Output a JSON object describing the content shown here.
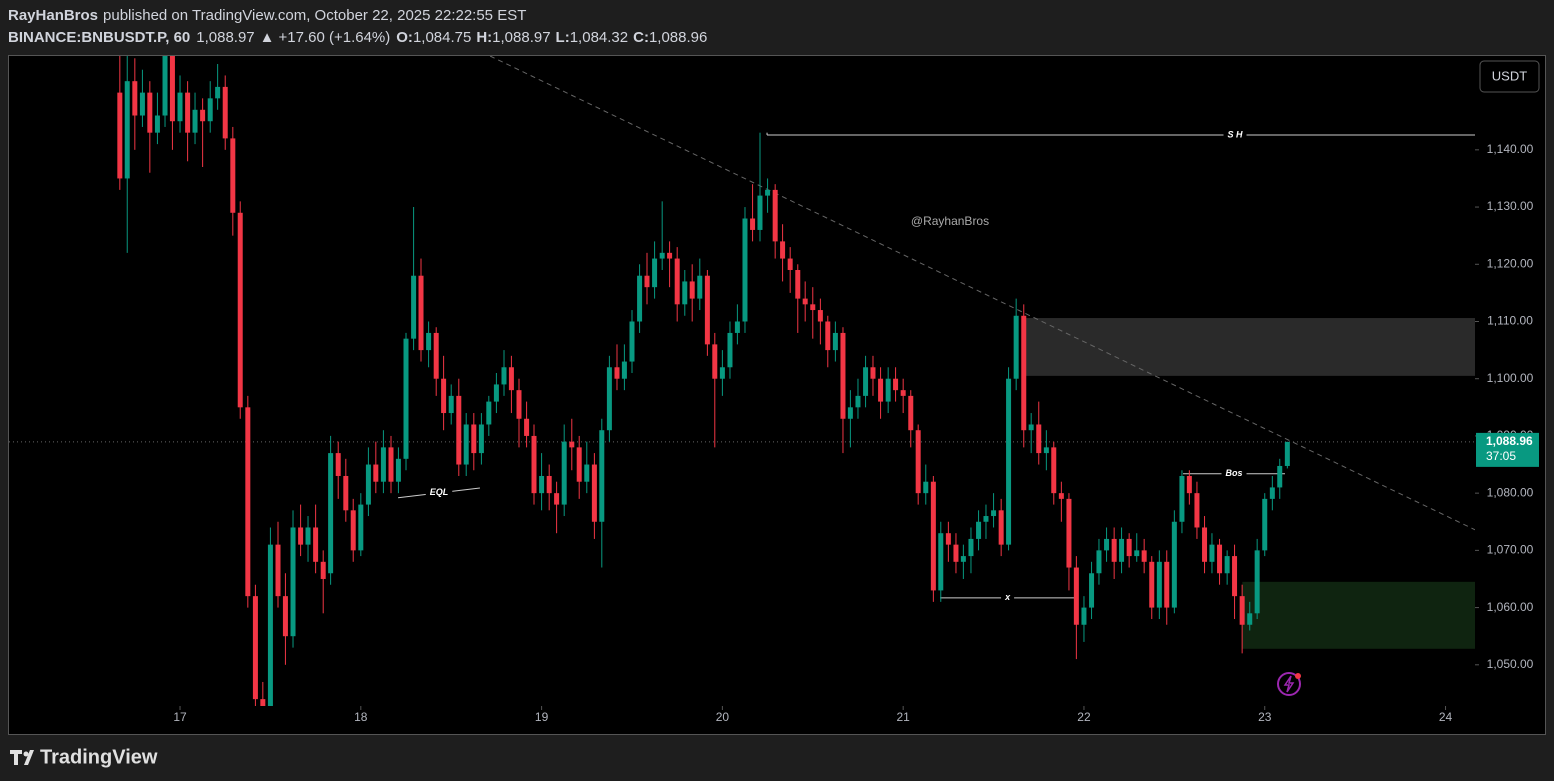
{
  "header": {
    "author": "RayHanBros",
    "published": "published on TradingView.com, October 22, 2025 22:22:55 EST",
    "symbol": "BINANCE:BNBUSDT.P, 60",
    "last": "1,088.97",
    "arrow": "▲",
    "change": "+17.60 (+1.64%)",
    "ohlc": [
      {
        "label": "O:",
        "value": "1,084.75"
      },
      {
        "label": "H:",
        "value": "1,088.97"
      },
      {
        "label": "L:",
        "value": "1,084.32"
      },
      {
        "label": "C:",
        "value": "1,088.96"
      }
    ]
  },
  "brand": "TradingView",
  "chart_data": {
    "type": "candlestick",
    "currency_button": "USDT",
    "watermark": "@RayhanBros",
    "up_color": "#089981",
    "down_color": "#f23645",
    "xlim": [
      16.054,
      24.163
    ],
    "ylim": [
      1042.8,
      1156.4
    ],
    "xticks": [
      17,
      18,
      19,
      20,
      21,
      22,
      23,
      24
    ],
    "yticks": [
      {
        "value": 1050,
        "label": "1,050.00"
      },
      {
        "value": 1060,
        "label": "1,060.00"
      },
      {
        "value": 1070,
        "label": "1,070.00"
      },
      {
        "value": 1080,
        "label": "1,080.00"
      },
      {
        "value": 1090,
        "label": "1,090.00"
      },
      {
        "value": 1100,
        "label": "1,100.00"
      },
      {
        "value": 1110,
        "label": "1,110.00"
      },
      {
        "value": 1120,
        "label": "1,120.00"
      },
      {
        "value": 1130,
        "label": "1,130.00"
      },
      {
        "value": 1140,
        "label": "1,140.00"
      }
    ],
    "x": [
      16.667,
      16.708,
      16.75,
      16.792,
      16.833,
      16.875,
      16.917,
      16.958,
      17,
      17.042,
      17.083,
      17.125,
      17.167,
      17.208,
      17.25,
      17.292,
      17.333,
      17.375,
      17.417,
      17.458,
      17.5,
      17.542,
      17.583,
      17.625,
      17.667,
      17.708,
      17.75,
      17.792,
      17.833,
      17.875,
      17.917,
      17.958,
      18,
      18.042,
      18.083,
      18.125,
      18.167,
      18.208,
      18.25,
      18.292,
      18.333,
      18.375,
      18.417,
      18.458,
      18.5,
      18.542,
      18.583,
      18.625,
      18.667,
      18.708,
      18.75,
      18.792,
      18.833,
      18.875,
      18.917,
      18.958,
      19,
      19.042,
      19.083,
      19.125,
      19.167,
      19.208,
      19.25,
      19.292,
      19.333,
      19.375,
      19.417,
      19.458,
      19.5,
      19.542,
      19.583,
      19.625,
      19.667,
      19.708,
      19.75,
      19.792,
      19.833,
      19.875,
      19.917,
      19.958,
      20,
      20.042,
      20.083,
      20.125,
      20.167,
      20.208,
      20.25,
      20.292,
      20.333,
      20.375,
      20.417,
      20.458,
      20.5,
      20.542,
      20.583,
      20.625,
      20.667,
      20.708,
      20.75,
      20.792,
      20.833,
      20.875,
      20.917,
      20.958,
      21,
      21.042,
      21.083,
      21.125,
      21.167,
      21.208,
      21.25,
      21.292,
      21.333,
      21.375,
      21.417,
      21.458,
      21.5,
      21.542,
      21.583,
      21.625,
      21.667,
      21.708,
      21.75,
      21.792,
      21.833,
      21.875,
      21.917,
      21.958,
      22,
      22.042,
      22.083,
      22.125,
      22.167,
      22.208,
      22.25,
      22.292,
      22.333,
      22.375,
      22.417,
      22.458,
      22.5,
      22.542,
      22.583,
      22.625,
      22.667,
      22.708,
      22.75,
      22.792,
      22.833,
      22.875,
      22.917,
      22.958,
      23,
      23.042,
      23.083,
      23.125
    ],
    "open": [
      1150,
      1135,
      1152,
      1146,
      1150,
      1143,
      1146,
      1157,
      1145,
      1150,
      1143,
      1147,
      1145,
      1149,
      1151,
      1142,
      1129,
      1095,
      1062,
      1044,
      1042,
      1071,
      1062,
      1055,
      1074,
      1071,
      1074,
      1068,
      1066,
      1087,
      1083,
      1077,
      1070,
      1078,
      1085,
      1082,
      1088,
      1082,
      1086,
      1107,
      1118,
      1105,
      1108,
      1100,
      1094,
      1097,
      1085,
      1092,
      1087,
      1092,
      1096,
      1099,
      1102,
      1098,
      1093,
      1090,
      1080,
      1083,
      1080,
      1078,
      1089,
      1088,
      1082,
      1085,
      1075,
      1091,
      1102,
      1100,
      1103,
      1110,
      1118,
      1116,
      1121,
      1122,
      1121,
      1113,
      1117,
      1114,
      1118,
      1106,
      1100,
      1102,
      1108,
      1110,
      1128,
      1126,
      1132,
      1133,
      1124,
      1121,
      1119,
      1114,
      1113,
      1112,
      1110,
      1105,
      1108,
      1093,
      1095,
      1097,
      1102,
      1100,
      1096,
      1100,
      1098,
      1097,
      1091,
      1080,
      1082,
      1063,
      1073,
      1071,
      1068,
      1069,
      1072,
      1075,
      1076,
      1077,
      1071,
      1100,
      1111,
      1091,
      1092,
      1087,
      1088,
      1080,
      1079,
      1067,
      1057,
      1060,
      1066,
      1070,
      1072,
      1068,
      1072,
      1069,
      1070,
      1068,
      1060,
      1068,
      1060,
      1075,
      1083,
      1080,
      1074,
      1068,
      1071,
      1066,
      1069,
      1062,
      1057,
      1059,
      1070,
      1079,
      1081,
      1084.75
    ],
    "high": [
      1158,
      1158,
      1156,
      1154,
      1152,
      1150,
      1160,
      1159,
      1153,
      1152,
      1150,
      1149,
      1152,
      1155,
      1153,
      1144,
      1131,
      1097,
      1064,
      1047,
      1074,
      1075,
      1066,
      1077,
      1078,
      1076,
      1078,
      1070,
      1090,
      1089,
      1086,
      1079,
      1080,
      1088,
      1089,
      1091,
      1090,
      1088,
      1108,
      1130,
      1121,
      1110,
      1109,
      1104,
      1099,
      1100,
      1094,
      1094,
      1094,
      1097,
      1101,
      1105,
      1104,
      1100,
      1096,
      1092,
      1087,
      1085,
      1082,
      1092,
      1093,
      1090,
      1089,
      1087,
      1093,
      1104,
      1106,
      1106,
      1112,
      1120,
      1122,
      1124,
      1131,
      1124,
      1123,
      1119,
      1120,
      1121,
      1119,
      1108,
      1105,
      1110,
      1113,
      1130,
      1134,
      1143,
      1135,
      1134,
      1127,
      1123,
      1120,
      1117,
      1116,
      1114,
      1111,
      1110,
      1109,
      1098,
      1100,
      1104,
      1104,
      1102,
      1102,
      1102,
      1100,
      1098,
      1092,
      1085,
      1083,
      1075,
      1075,
      1073,
      1071,
      1074,
      1077,
      1078,
      1080,
      1079,
      1102,
      1114,
      1113,
      1094,
      1096,
      1091,
      1089,
      1082,
      1080,
      1069,
      1062,
      1068,
      1072,
      1074,
      1074,
      1074,
      1073,
      1073,
      1072,
      1069,
      1070,
      1070,
      1077,
      1084,
      1084,
      1082,
      1076,
      1073,
      1072,
      1070,
      1071,
      1064,
      1061,
      1072,
      1080,
      1083,
      1086,
      1088.97
    ],
    "low": [
      1133,
      1122,
      1140,
      1144,
      1136,
      1141,
      1144,
      1140,
      1143,
      1138,
      1141,
      1137,
      1143,
      1147,
      1140,
      1125,
      1093,
      1060,
      1040,
      1036,
      1040,
      1060,
      1050,
      1053,
      1069,
      1068,
      1066,
      1059,
      1064,
      1079,
      1075,
      1068,
      1069,
      1076,
      1080,
      1080,
      1080,
      1080,
      1084,
      1105,
      1103,
      1102,
      1097,
      1091,
      1092,
      1083,
      1083,
      1084,
      1085,
      1090,
      1094,
      1097,
      1094,
      1088,
      1088,
      1078,
      1077,
      1077,
      1073,
      1076,
      1084,
      1079,
      1080,
      1072,
      1067,
      1089,
      1098,
      1098,
      1101,
      1108,
      1113,
      1114,
      1119,
      1116,
      1110,
      1111,
      1110,
      1112,
      1104,
      1088,
      1097,
      1100,
      1106,
      1108,
      1124,
      1124,
      1129,
      1121,
      1117,
      1115,
      1108,
      1110,
      1107,
      1106,
      1102,
      1103,
      1087,
      1088,
      1093,
      1095,
      1097,
      1093,
      1094,
      1096,
      1094,
      1088,
      1078,
      1078,
      1061,
      1061,
      1068,
      1066,
      1065,
      1066,
      1070,
      1072,
      1074,
      1069,
      1070,
      1098,
      1088,
      1087,
      1085,
      1084,
      1078,
      1075,
      1063,
      1051,
      1054,
      1058,
      1064,
      1068,
      1065,
      1066,
      1067,
      1068,
      1066,
      1058,
      1058,
      1057,
      1059,
      1073,
      1078,
      1072,
      1066,
      1066,
      1064,
      1064,
      1058,
      1052,
      1056,
      1058,
      1069,
      1077,
      1079,
      1084.32
    ],
    "close": [
      1135,
      1152,
      1146,
      1150,
      1143,
      1146,
      1157,
      1145,
      1150,
      1143,
      1147,
      1145,
      1149,
      1151,
      1142,
      1129,
      1095,
      1062,
      1044,
      1042,
      1071,
      1062,
      1055,
      1074,
      1071,
      1074,
      1068,
      1065,
      1087,
      1083,
      1077,
      1070,
      1078,
      1085,
      1082,
      1088,
      1082,
      1086,
      1107,
      1118,
      1105,
      1108,
      1100,
      1094,
      1097,
      1085,
      1092,
      1087,
      1092,
      1096,
      1099,
      1102,
      1098,
      1093,
      1090,
      1080,
      1083,
      1080,
      1078,
      1089,
      1088,
      1082,
      1085,
      1075,
      1091,
      1102,
      1100,
      1103,
      1110,
      1118,
      1116,
      1121,
      1122,
      1121,
      1113,
      1117,
      1114,
      1118,
      1106,
      1100,
      1102,
      1108,
      1110,
      1128,
      1126,
      1132,
      1133,
      1124,
      1121,
      1119,
      1114,
      1113,
      1112,
      1110,
      1105,
      1108,
      1093,
      1095,
      1097,
      1102,
      1100,
      1096,
      1100,
      1098,
      1097,
      1091,
      1080,
      1082,
      1063,
      1073,
      1071,
      1068,
      1069,
      1072,
      1075,
      1076,
      1077,
      1071,
      1100,
      1111,
      1091,
      1092,
      1087,
      1088,
      1080,
      1079,
      1067,
      1057,
      1060,
      1066,
      1070,
      1072,
      1068,
      1072,
      1069,
      1070,
      1068,
      1060,
      1068,
      1060,
      1075,
      1083,
      1080,
      1074,
      1068,
      1071,
      1066,
      1069,
      1062,
      1057,
      1059,
      1070,
      1079,
      1081,
      1084.75,
      1088.96
    ],
    "price_label": "1,088.96",
    "countdown": "37:05",
    "trendline": {
      "x": [
        18.715,
        24.163
      ],
      "y": [
        1156.4,
        1073.6
      ]
    },
    "zones": [
      {
        "x": [
          21.667,
          24.163
        ],
        "y": [
          1100.5,
          1110.6
        ],
        "color": "#2a2a2a"
      },
      {
        "x": [
          22.876,
          24.163
        ],
        "y": [
          1052.8,
          1064.5
        ],
        "color": "#0f2410"
      }
    ],
    "levels": [
      {
        "label": "S H",
        "x": [
          20.247,
          24.163
        ],
        "y": [
          1142.6,
          1142.6
        ]
      },
      {
        "label": "EQL",
        "x": [
          18.206,
          18.659
        ],
        "y": [
          1079.2,
          1080.9
        ]
      },
      {
        "label": "Bos",
        "x": [
          22.548,
          23.112
        ],
        "y": [
          1083.4,
          1083.4
        ]
      },
      {
        "label": "x",
        "x": [
          21.204,
          21.951
        ],
        "y": [
          1061.7,
          1061.7
        ]
      }
    ]
  }
}
